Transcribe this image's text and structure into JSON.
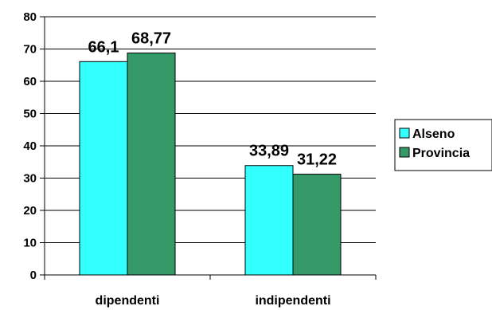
{
  "chart_data": {
    "type": "bar",
    "categories": [
      "dipendenti",
      "indipendenti"
    ],
    "series": [
      {
        "name": "Alseno",
        "values": [
          66.1,
          33.89
        ],
        "labels": [
          "66,1",
          "33,89"
        ],
        "color": "#33FFFF"
      },
      {
        "name": "Provincia",
        "values": [
          68.77,
          31.22
        ],
        "labels": [
          "68,77",
          "31,22"
        ],
        "color": "#339966"
      }
    ],
    "ylim": [
      0,
      80
    ],
    "yticks": [
      0,
      10,
      20,
      30,
      40,
      50,
      60,
      70,
      80
    ],
    "grid": true,
    "legend": "right"
  }
}
